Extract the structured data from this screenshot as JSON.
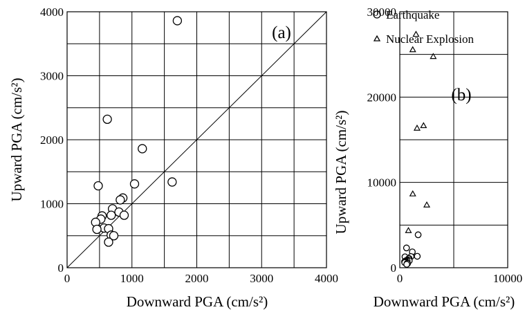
{
  "chart_data": [
    {
      "panel": "(a)",
      "type": "scatter",
      "xlabel": "Downward PGA (cm/s²)",
      "ylabel": "Upward PGA (cm/s²)",
      "xlim": [
        0,
        4000
      ],
      "ylim": [
        0,
        4000
      ],
      "xticks": [
        0,
        1000,
        2000,
        3000,
        4000
      ],
      "yticks": [
        0,
        1000,
        2000,
        3000,
        4000
      ],
      "grid_step": 500,
      "grid": true,
      "reference_line": "y = x",
      "series": [
        {
          "name": "Earthquake",
          "marker": "circle",
          "points": [
            [
              1700,
              3860
            ],
            [
              620,
              2320
            ],
            [
              1160,
              1860
            ],
            [
              1040,
              1310
            ],
            [
              1620,
              1340
            ],
            [
              480,
              1280
            ],
            [
              860,
              1090
            ],
            [
              820,
              1060
            ],
            [
              700,
              920
            ],
            [
              800,
              870
            ],
            [
              880,
              820
            ],
            [
              680,
              820
            ],
            [
              540,
              810
            ],
            [
              520,
              760
            ],
            [
              440,
              710
            ],
            [
              570,
              620
            ],
            [
              640,
              610
            ],
            [
              460,
              600
            ],
            [
              680,
              510
            ],
            [
              720,
              500
            ],
            [
              640,
              400
            ]
          ]
        }
      ]
    },
    {
      "panel": "(b)",
      "type": "scatter",
      "xlabel": "Downward PGA (cm/s²)",
      "ylabel": "Upward PGA (cm/s²)",
      "xlim": [
        0,
        10000
      ],
      "ylim": [
        0,
        30000
      ],
      "xticks": [
        0,
        10000
      ],
      "yticks": [
        0,
        10000,
        20000,
        30000
      ],
      "grid_step_x": 5000,
      "grid_step_y": 5000,
      "grid": true,
      "series": [
        {
          "name": "Earthquake",
          "marker": "circle",
          "points": [
            [
              1700,
              3860
            ],
            [
              620,
              2320
            ],
            [
              1160,
              1860
            ],
            [
              1040,
              1310
            ],
            [
              1620,
              1340
            ],
            [
              480,
              1280
            ],
            [
              860,
              1090
            ],
            [
              820,
              1060
            ],
            [
              700,
              920
            ],
            [
              800,
              870
            ],
            [
              880,
              820
            ],
            [
              680,
              820
            ],
            [
              540,
              810
            ],
            [
              520,
              760
            ],
            [
              440,
              710
            ],
            [
              570,
              620
            ],
            [
              640,
              610
            ],
            [
              460,
              600
            ],
            [
              680,
              510
            ],
            [
              720,
              500
            ],
            [
              640,
              400
            ]
          ]
        },
        {
          "name": "Nuclear Explosion",
          "marker": "triangle",
          "points": [
            [
              1500,
              27400
            ],
            [
              1200,
              25600
            ],
            [
              3100,
              24800
            ],
            [
              2200,
              16700
            ],
            [
              1600,
              16400
            ],
            [
              1200,
              8700
            ],
            [
              2500,
              7400
            ],
            [
              800,
              4400
            ]
          ]
        }
      ]
    }
  ],
  "legend": {
    "placement": "top-right",
    "items": [
      {
        "label": "Earthquake",
        "marker": "circle"
      },
      {
        "label": "Nuclear Explosion",
        "marker": "triangle"
      }
    ]
  }
}
